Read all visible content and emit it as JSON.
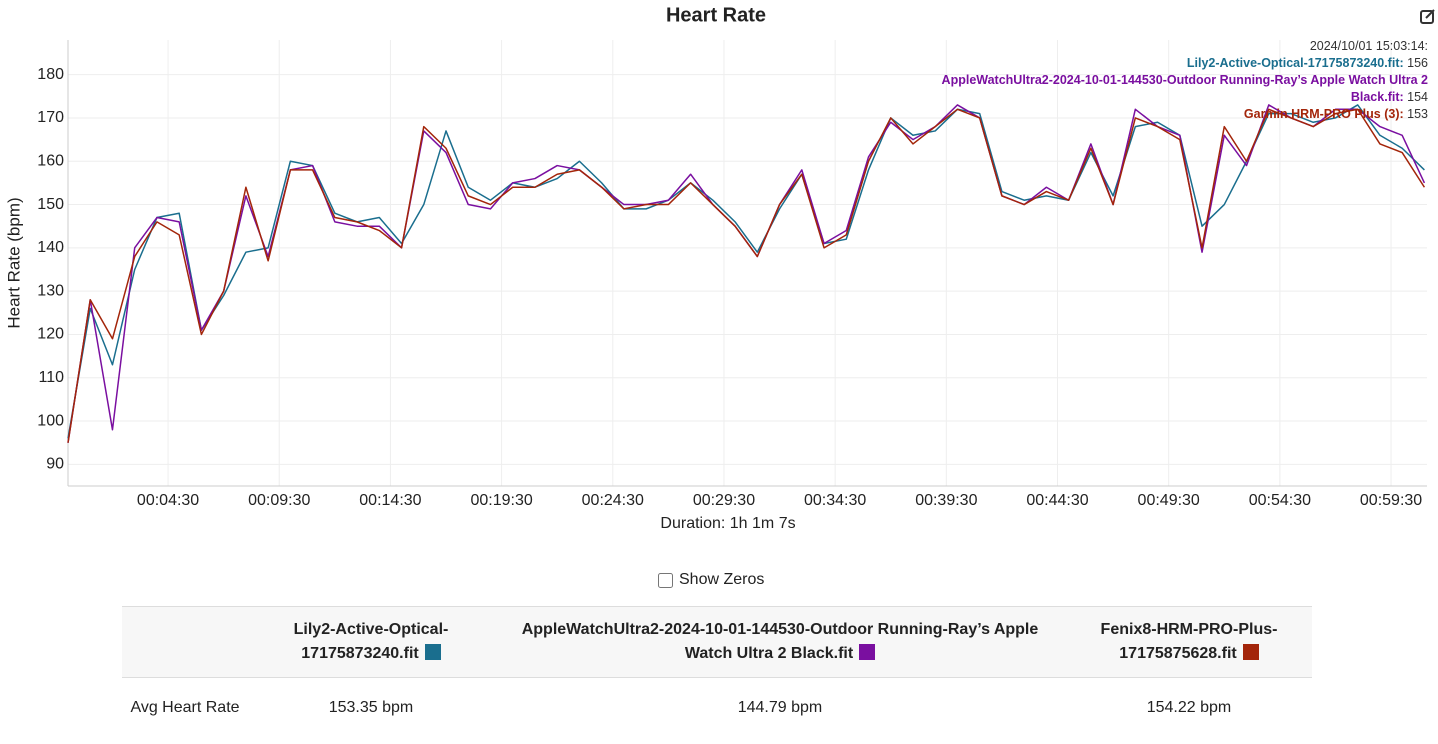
{
  "chart_data": {
    "type": "line",
    "title": "Heart Rate",
    "ylabel": "Heart Rate (bpm)",
    "xlabel": "Duration: 1h 1m 7s",
    "xlim": [
      0,
      3667
    ],
    "ylim": [
      85,
      188
    ],
    "xticks": [
      {
        "value": 270,
        "label": "00:04:30"
      },
      {
        "value": 570,
        "label": "00:09:30"
      },
      {
        "value": 870,
        "label": "00:14:30"
      },
      {
        "value": 1170,
        "label": "00:19:30"
      },
      {
        "value": 1470,
        "label": "00:24:30"
      },
      {
        "value": 1770,
        "label": "00:29:30"
      },
      {
        "value": 2070,
        "label": "00:34:30"
      },
      {
        "value": 2370,
        "label": "00:39:30"
      },
      {
        "value": 2670,
        "label": "00:44:30"
      },
      {
        "value": 2970,
        "label": "00:49:30"
      },
      {
        "value": 3270,
        "label": "00:54:30"
      },
      {
        "value": 3570,
        "label": "00:59:30"
      }
    ],
    "yticks": [
      90,
      100,
      110,
      120,
      130,
      140,
      150,
      160,
      170,
      180
    ],
    "grid": true,
    "x": [
      0,
      60,
      120,
      180,
      240,
      300,
      360,
      420,
      480,
      540,
      600,
      660,
      720,
      780,
      840,
      900,
      960,
      1020,
      1080,
      1140,
      1200,
      1260,
      1320,
      1380,
      1440,
      1500,
      1560,
      1620,
      1680,
      1740,
      1800,
      1860,
      1920,
      1980,
      2040,
      2100,
      2160,
      2220,
      2280,
      2340,
      2400,
      2460,
      2520,
      2580,
      2640,
      2700,
      2760,
      2820,
      2880,
      2940,
      3000,
      3060,
      3120,
      3180,
      3240,
      3300,
      3360,
      3420,
      3480,
      3540,
      3600,
      3660
    ],
    "series": [
      {
        "name": "Lily2-Active-Optical-17175873240.fit",
        "color": "#1a6e8e",
        "values": [
          96,
          126,
          113,
          135,
          147,
          148,
          121,
          129,
          139,
          140,
          160,
          159,
          148,
          146,
          147,
          141,
          150,
          167,
          154,
          151,
          155,
          154,
          156,
          160,
          155,
          149,
          149,
          151,
          155,
          151,
          146,
          139,
          149,
          157,
          141,
          142,
          158,
          170,
          166,
          167,
          172,
          171,
          153,
          151,
          152,
          151,
          162,
          152,
          168,
          169,
          166,
          145,
          150,
          160,
          171,
          171,
          169,
          170,
          173,
          166,
          163,
          158
        ]
      },
      {
        "name": "AppleWatchUltra2-2024-10-01-144530-Outdoor Running-Ray’s Apple Watch Ultra 2 Black.fit",
        "color": "#7a0fa0",
        "values": [
          95,
          128,
          98,
          140,
          147,
          146,
          121,
          130,
          152,
          138,
          158,
          159,
          146,
          145,
          145,
          140,
          167,
          162,
          150,
          149,
          155,
          156,
          159,
          158,
          154,
          150,
          150,
          151,
          157,
          150,
          145,
          138,
          150,
          158,
          141,
          144,
          161,
          169,
          165,
          168,
          173,
          170,
          152,
          150,
          154,
          151,
          164,
          150,
          172,
          168,
          166,
          139,
          166,
          159,
          173,
          170,
          168,
          172,
          172,
          168,
          166,
          155
        ]
      },
      {
        "name": "Fenix8-HRM-PRO-Plus-17175875628.fit",
        "color": "#a3250a",
        "values": [
          95,
          128,
          119,
          138,
          146,
          143,
          120,
          130,
          154,
          137,
          158,
          158,
          147,
          146,
          144,
          140,
          168,
          163,
          152,
          150,
          154,
          154,
          157,
          158,
          154,
          149,
          150,
          150,
          155,
          150,
          145,
          138,
          150,
          157,
          140,
          143,
          160,
          170,
          164,
          168,
          172,
          170,
          152,
          150,
          153,
          151,
          163,
          150,
          170,
          168,
          165,
          140,
          168,
          160,
          172,
          170,
          168,
          171,
          172,
          164,
          162,
          154
        ]
      }
    ],
    "tooltip": {
      "time": "2024/10/01 15:03:14:",
      "items": [
        {
          "name": "Lily2-Active-Optical-17175873240.fit:",
          "value": 156
        },
        {
          "name": "AppleWatchUltra2-2024-10-01-144530-Outdoor Running-Ray’s Apple Watch Ultra 2 Black.fit:",
          "value": 154
        },
        {
          "name": "Garmin HRM-PRO Plus (3):",
          "value": 153
        }
      ]
    }
  },
  "controls": {
    "show_zeros": "Show Zeros"
  },
  "table": {
    "row_label": "Avg Heart Rate",
    "values": [
      "153.35 bpm",
      "144.79 bpm",
      "154.22 bpm"
    ]
  }
}
